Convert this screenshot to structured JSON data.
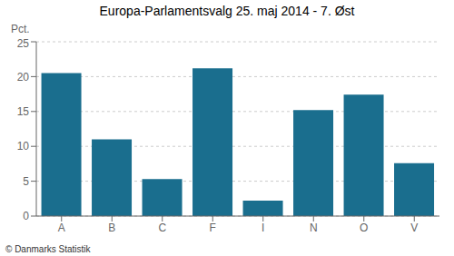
{
  "chart_data": {
    "type": "bar",
    "title": "Europa-Parlamentsvalg 25. maj 2014 - 7. Øst",
    "categories": [
      "A",
      "B",
      "C",
      "F",
      "I",
      "N",
      "O",
      "V"
    ],
    "values": [
      20.5,
      11.0,
      5.3,
      21.2,
      2.2,
      15.2,
      17.4,
      7.6
    ],
    "color": "#1a6e8e",
    "ylabel": "Pct.",
    "ylim": [
      0,
      25
    ],
    "yticks": [
      0,
      5,
      10,
      15,
      20,
      25
    ],
    "grid": true,
    "annotations": [
      "© Danmarks Statistik"
    ]
  }
}
